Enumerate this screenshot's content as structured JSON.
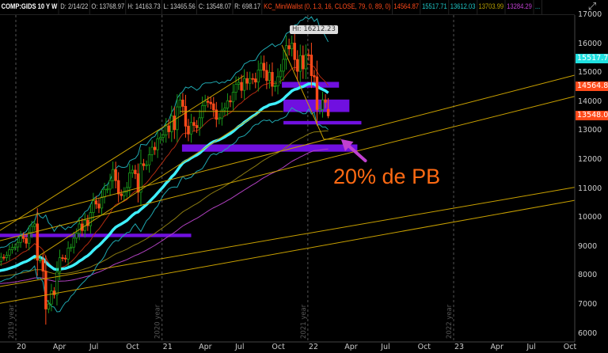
{
  "header": {
    "symbol": "COMP:GIDS 10 Y W",
    "date": "D: 2/14/22",
    "open": "O: 13768.97",
    "high": "H: 14163.73",
    "low": "L: 13465.56",
    "close": "C: 13548.07",
    "range": "R: 698.17",
    "study": "KC_MiniWallst (0, 1.3, 16, CLOSE, 79, 0, 89, 0)",
    "study_values": [
      {
        "text": "14564.87",
        "color": "#ff4a1a"
      },
      {
        "text": "15517.71",
        "color": "#1fc8c8"
      },
      {
        "text": "13612.03",
        "color": "#1fc8c8"
      },
      {
        "text": "13703.99",
        "color": "#b8a000"
      },
      {
        "text": "13284.29",
        "color": "#c040d0"
      }
    ],
    "more": "...",
    "corner_icon": "zoom-expand-icon"
  },
  "chart_data": {
    "type": "candlestick",
    "title": "COMP:GIDS 10 Y W",
    "interval": "weekly",
    "start_date": "2019-10-28",
    "closes": [
      8325,
      8475,
      8540,
      8520,
      8665,
      8656,
      8734,
      8924,
      9006,
      9020,
      9178,
      9389,
      9315,
      9150,
      9520,
      9731,
      9817,
      8567,
      8575,
      8185,
      6880,
      7050,
      7502,
      7373,
      8154,
      8650,
      8634,
      8604,
      8979,
      9014,
      9324,
      9490,
      9815,
      9589,
      9946,
      9757,
      10207,
      10617,
      10503,
      10363,
      10745,
      11010,
      11019,
      11311,
      11695,
      11313,
      10853,
      10793,
      10914,
      11075,
      11579,
      11672,
      11548,
      10912,
      11895,
      11830,
      11855,
      12206,
      12464,
      12378,
      12756,
      12805,
      12888,
      13202,
      12999,
      13543,
      13071,
      13856,
      14095,
      13875,
      13192,
      12920,
      13319,
      13215,
      13138,
      13480,
      13900,
      14052,
      14016,
      13962,
      13752,
      13430,
      13471,
      13748,
      13814,
      14069,
      14030,
      14360,
      14639,
      14701,
      14427,
      14836,
      14673,
      14835,
      14823,
      14714,
      15129,
      15363,
      15115,
      14768,
      15048,
      14567,
      14579,
      14897,
      15090,
      15498,
      15971,
      15860,
      16057,
      15491,
      15085,
      15630,
      15169,
      15653,
      15645,
      14936,
      14894,
      13768,
      13770,
      14098,
      14015,
      13548
    ],
    "last_bar": {
      "date": "2022-02-14",
      "open": 13768.97,
      "high": 14163.73,
      "low": 13465.56,
      "close": 13548.07
    },
    "high_label": "Hi: 16212.23",
    "high_value": 16212.23,
    "ylim": [
      5700,
      17400
    ],
    "y_ticks": [
      "17000",
      "16000",
      "15000",
      "14000",
      "13000",
      "12000",
      "11000",
      "10000",
      "9000",
      "8000",
      "7000",
      "6000"
    ],
    "x_ticks": [
      {
        "label": "20",
        "date": "2020-01-01"
      },
      {
        "label": "Apr",
        "date": "2020-04-01"
      },
      {
        "label": "Jul",
        "date": "2020-07-01"
      },
      {
        "label": "Oct",
        "date": "2020-10-01"
      },
      {
        "label": "21",
        "date": "2021-01-01"
      },
      {
        "label": "Apr",
        "date": "2021-04-01"
      },
      {
        "label": "Jul",
        "date": "2021-07-01"
      },
      {
        "label": "Oct",
        "date": "2021-10-01"
      },
      {
        "label": "22",
        "date": "2022-01-01"
      },
      {
        "label": "Apr",
        "date": "2022-04-01"
      },
      {
        "label": "Jul",
        "date": "2022-07-01"
      },
      {
        "label": "Oct",
        "date": "2022-10-01"
      },
      {
        "label": "23",
        "date": "2023-01-01"
      },
      {
        "label": "Apr",
        "date": "2023-04-01"
      },
      {
        "label": "Jul",
        "date": "2023-07-01"
      },
      {
        "label": "Oct",
        "date": "2023-10-01"
      }
    ],
    "year_separators": [
      {
        "label": "2019 year",
        "date": "2020-01-01"
      },
      {
        "label": "2020 year",
        "date": "2021-01-01"
      },
      {
        "label": "2021 year",
        "date": "2022-01-01"
      },
      {
        "label": "2022 year",
        "date": "2023-01-01"
      }
    ],
    "price_tags": [
      {
        "text": "15517.71",
        "value": 15517.71,
        "color": "#1fe0e0"
      },
      {
        "text": "14564.87",
        "value": 14564.87,
        "color": "#ff4a1a"
      },
      {
        "text": "13548.07",
        "value": 13548.07,
        "color": "#ff4a1a"
      }
    ],
    "colors": {
      "up": "#1a9a1a",
      "down": "#ff4a1a",
      "ma_thick": "#3ff0ff",
      "band": "#1fa8b0",
      "mid": "#b02a10",
      "long1": "#8a7a10",
      "long2": "#b040c0",
      "trendline": "#c8a000",
      "zone": "#7010e0",
      "arrow": "#c040d0"
    },
    "trendlines": [
      {
        "from": [
          "2019-11-20",
          9814
        ],
        "to": [
          "2023-10-31",
          14951
        ]
      },
      {
        "from": [
          "2019-11-20",
          9230
        ],
        "to": [
          "2023-10-31",
          14220
        ]
      },
      {
        "from": [
          "2019-11-20",
          7650
        ],
        "to": [
          "2023-10-31",
          11080
        ]
      },
      {
        "from": [
          "2019-11-20",
          7070
        ],
        "to": [
          "2023-10-31",
          10630
        ]
      },
      {
        "from": [
          "2019-11-20",
          9570
        ],
        "to": [
          "2021-07-25",
          14930
        ]
      },
      {
        "from": [
          "2020-02-15",
          8600
        ],
        "to": [
          "2021-09-01",
          13650
        ]
      },
      {
        "from": [
          "2021-02-15",
          13700
        ],
        "to": [
          "2021-10-31",
          13700
        ]
      },
      {
        "from": [
          "2021-10-28",
          15990
        ],
        "to": [
          "2022-02-10",
          12740
        ]
      },
      {
        "from": [
          "2022-02-10",
          12740
        ],
        "to": [
          "2022-03-25",
          12740
        ]
      }
    ],
    "zones": [
      {
        "from": "2019-11-20",
        "to": "2021-03-15",
        "low": 9360,
        "high": 9480
      },
      {
        "from": "2021-10-28",
        "to": "2022-03-20",
        "low": 14520,
        "high": 14720
      },
      {
        "from": "2021-11-01",
        "to": "2022-04-15",
        "low": 13680,
        "high": 14110
      },
      {
        "from": "2021-11-01",
        "to": "2022-05-15",
        "low": 13250,
        "high": 13370
      },
      {
        "from": "2021-02-20",
        "to": "2022-05-05",
        "low": 12310,
        "high": 12560
      }
    ],
    "annotation": {
      "text": "20% de PB",
      "arrow_from": [
        "2022-05-25",
        12000
      ],
      "arrow_to": [
        "2022-03-25",
        12740
      ]
    }
  }
}
